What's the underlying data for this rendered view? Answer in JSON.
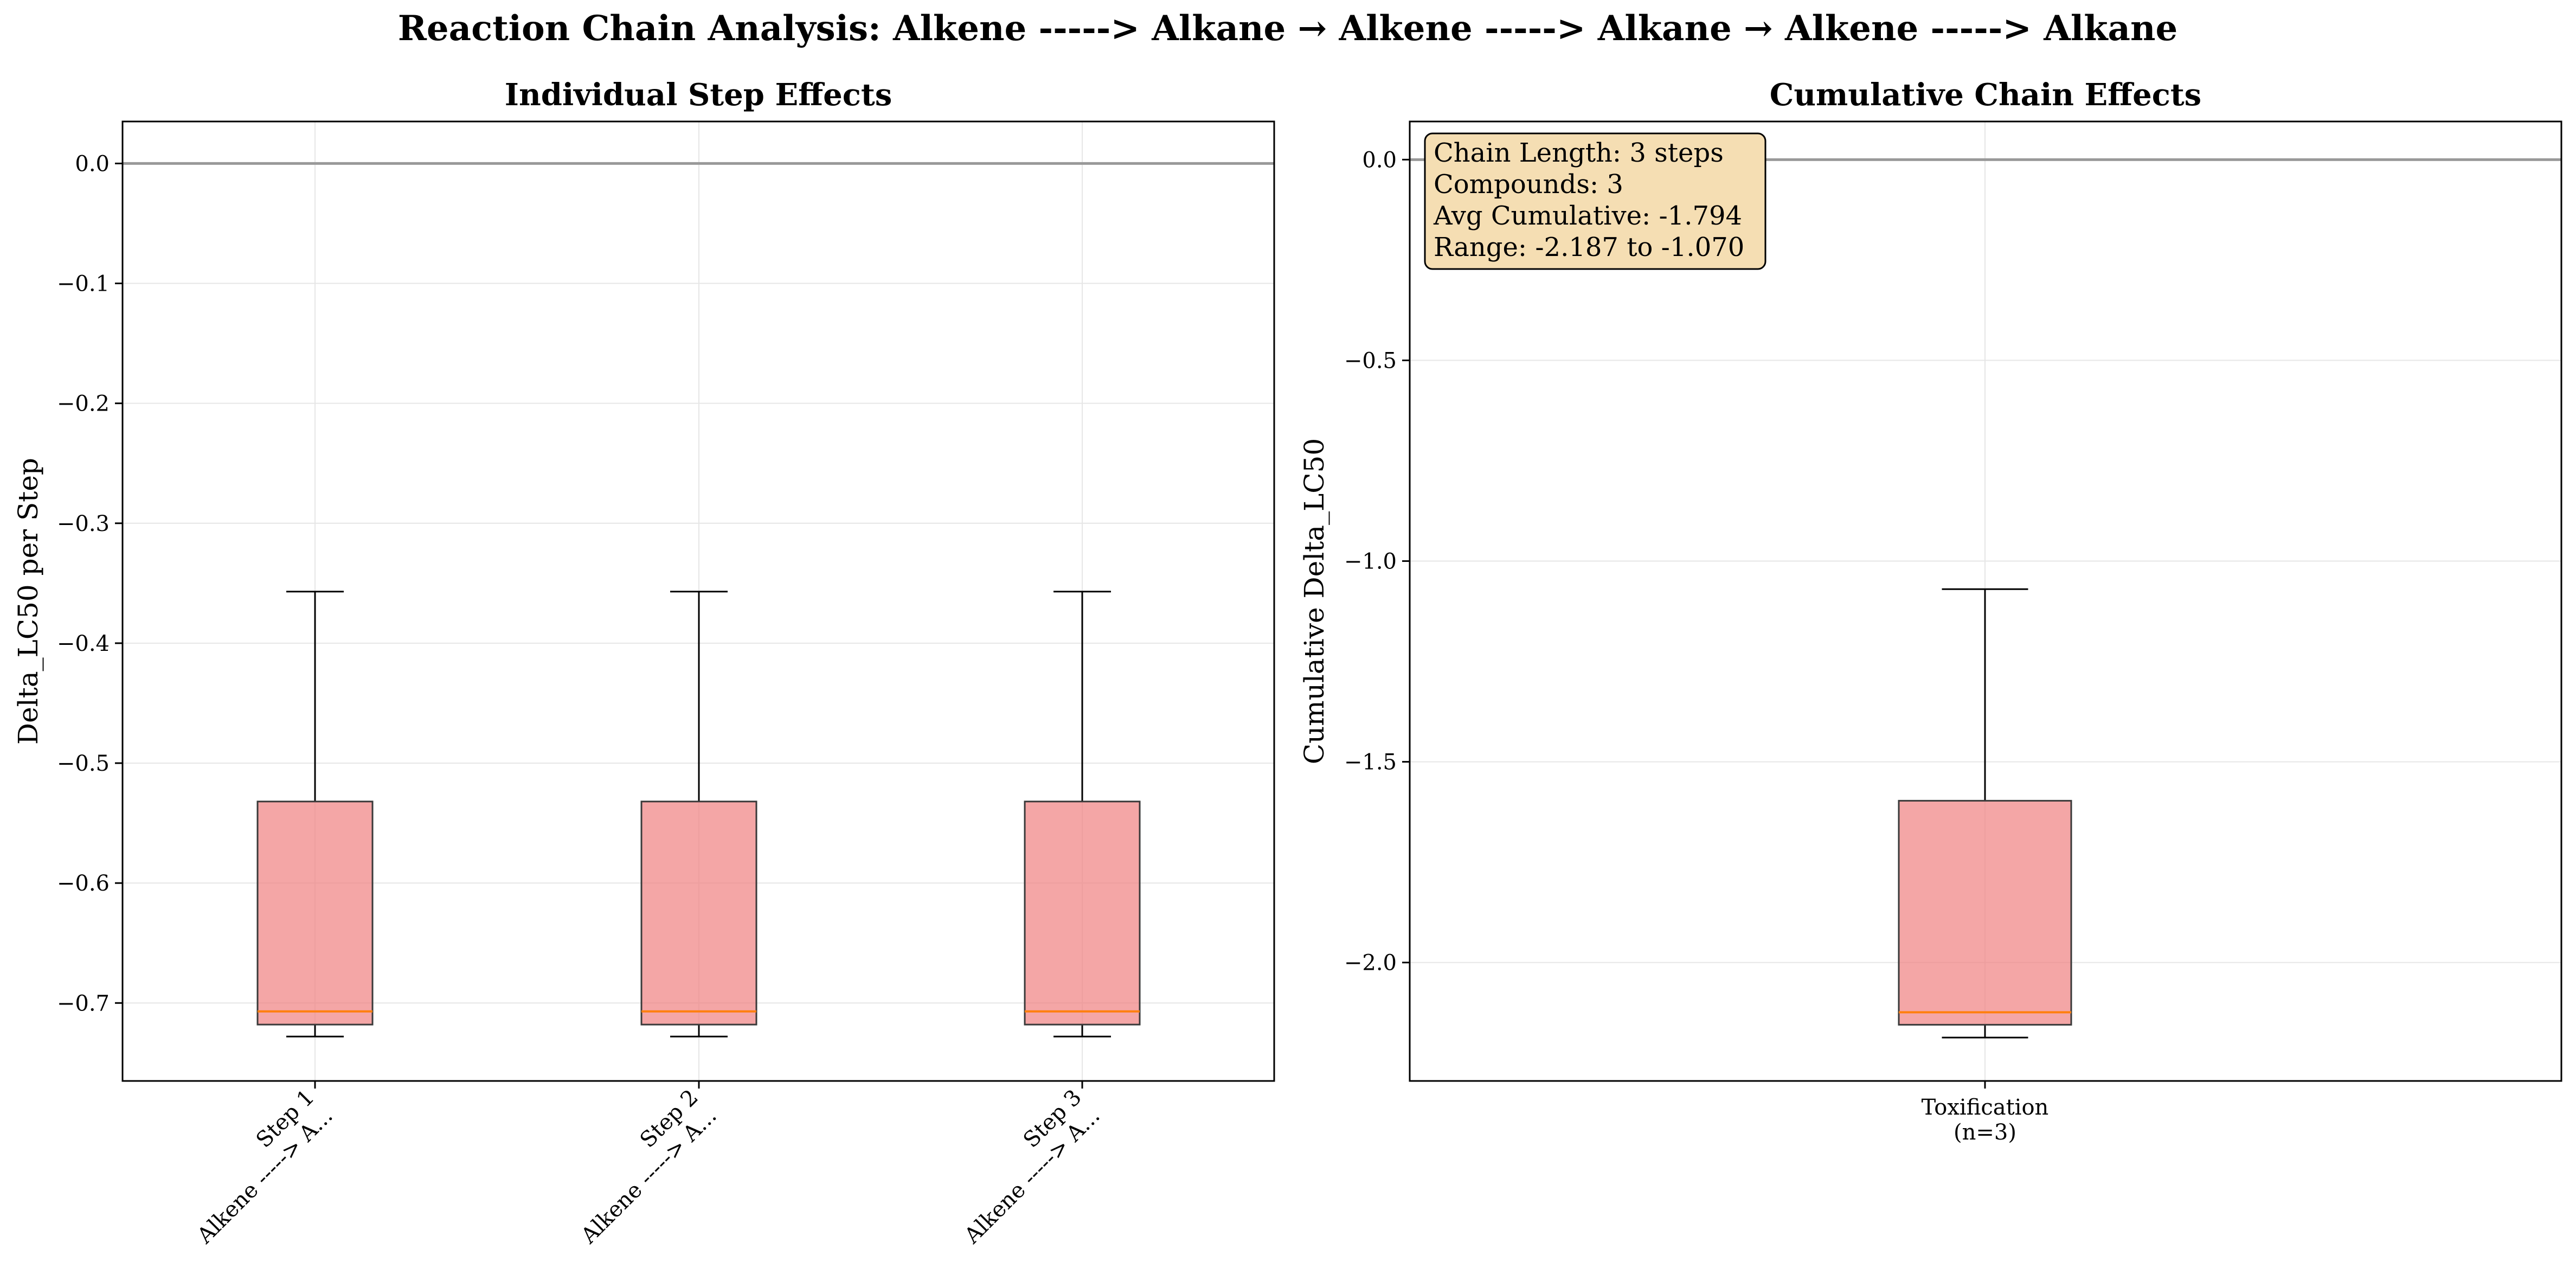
{
  "figure": {
    "suptitle": "Reaction Chain Analysis: Alkene -----> Alkane → Alkene -----> Alkane → Alkene -----> Alkane"
  },
  "colors": {
    "box_fill": "#f08080",
    "box_edge": "#3a3a3a",
    "median": "#ff7f0e",
    "zero_line": "#999999",
    "grid": "#e6e6e6",
    "annotation_fill": "#f5deb3"
  },
  "chart_data": [
    {
      "type": "box",
      "title": "Individual Step Effects",
      "xlabel": "",
      "ylabel": "Delta_LC50 per Step",
      "ylim": [
        -0.765,
        0.035
      ],
      "yticks": [
        0.0,
        -0.1,
        -0.2,
        -0.3,
        -0.4,
        -0.5,
        -0.6,
        -0.7
      ],
      "ytick_labels": [
        "0.0",
        "−0.1",
        "−0.2",
        "−0.3",
        "−0.4",
        "−0.5",
        "−0.6",
        "−0.7"
      ],
      "grid": true,
      "reference_line_y": 0.0,
      "categories": [
        {
          "line1": "Step 1",
          "line2": "Alkene -----> A..."
        },
        {
          "line1": "Step 2",
          "line2": "Alkene -----> A..."
        },
        {
          "line1": "Step 3",
          "line2": "Alkene -----> A..."
        }
      ],
      "tick_rotation": 45,
      "boxes": [
        {
          "whislo": -0.728,
          "q1": -0.718,
          "med": -0.707,
          "q3": -0.532,
          "whishi": -0.357
        },
        {
          "whislo": -0.728,
          "q1": -0.718,
          "med": -0.707,
          "q3": -0.532,
          "whishi": -0.357
        },
        {
          "whislo": -0.728,
          "q1": -0.718,
          "med": -0.707,
          "q3": -0.532,
          "whishi": -0.357
        }
      ]
    },
    {
      "type": "box",
      "title": "Cumulative Chain Effects",
      "xlabel": "",
      "ylabel": "Cumulative Delta_LC50",
      "ylim": [
        -2.295,
        0.095
      ],
      "yticks": [
        0.0,
        -0.5,
        -1.0,
        -1.5,
        -2.0
      ],
      "ytick_labels": [
        "0.0",
        "−0.5",
        "−1.0",
        "−1.5",
        "−2.0"
      ],
      "grid": true,
      "reference_line_y": 0.0,
      "categories": [
        {
          "line1": "Toxification",
          "line2": "(n=3)"
        }
      ],
      "tick_rotation": 0,
      "boxes": [
        {
          "whislo": -2.187,
          "q1": -2.155,
          "med": -2.124,
          "q3": -1.597,
          "whishi": -1.07
        }
      ],
      "annotation": {
        "lines": [
          "Chain Length: 3 steps",
          "Compounds: 3",
          "Avg Cumulative: -1.794",
          "Range: -2.187 to -1.070"
        ],
        "placement": "top-left"
      }
    }
  ]
}
